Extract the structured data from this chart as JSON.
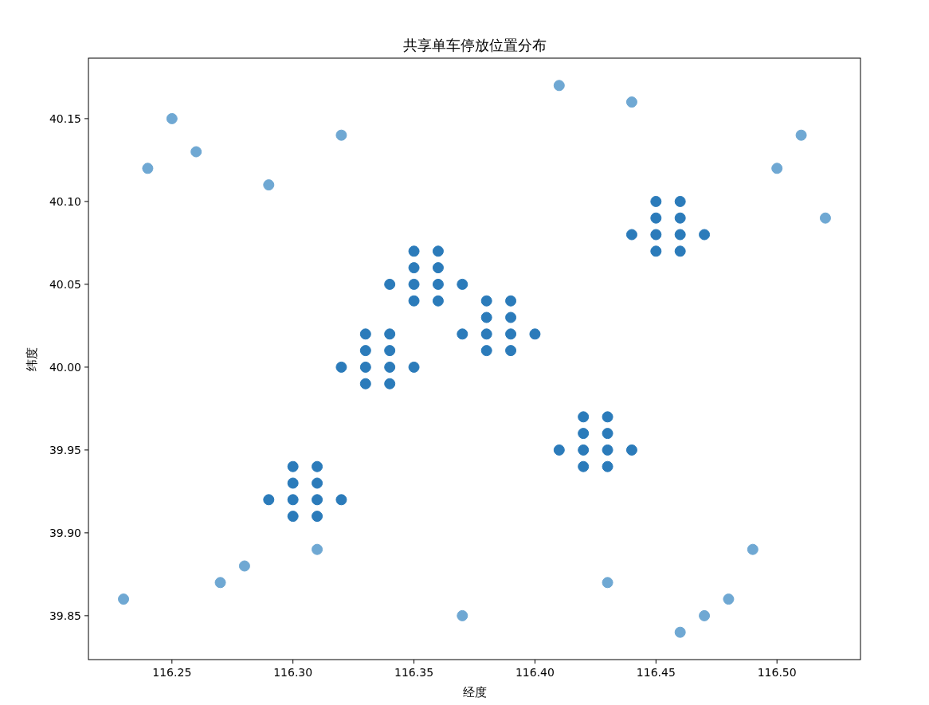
{
  "chart_data": {
    "type": "scatter",
    "title": "共享单车停放位置分布",
    "xlabel": "经度",
    "ylabel": "纬度",
    "xlim": [
      116.2155,
      116.5345
    ],
    "ylim": [
      39.8235,
      40.1865
    ],
    "xticks": [
      {
        "value": 116.25,
        "label": "116.25"
      },
      {
        "value": 116.3,
        "label": "116.30"
      },
      {
        "value": 116.35,
        "label": "116.35"
      },
      {
        "value": 116.4,
        "label": "116.40"
      },
      {
        "value": 116.45,
        "label": "116.45"
      },
      {
        "value": 116.5,
        "label": "116.50"
      }
    ],
    "yticks": [
      {
        "value": 39.85,
        "label": "39.85"
      },
      {
        "value": 39.9,
        "label": "39.90"
      },
      {
        "value": 39.95,
        "label": "39.95"
      },
      {
        "value": 40.0,
        "label": "40.00"
      },
      {
        "value": 40.05,
        "label": "40.05"
      },
      {
        "value": 40.1,
        "label": "40.10"
      },
      {
        "value": 40.15,
        "label": "40.15"
      }
    ],
    "marker": "circle",
    "grid": false,
    "series": [
      {
        "color": "#6fa8d3",
        "x": [
          116.23,
          116.24,
          116.25,
          116.26,
          116.29,
          116.32,
          116.27,
          116.28,
          116.31,
          116.37,
          116.41,
          116.44,
          116.43,
          116.46,
          116.47,
          116.48,
          116.49,
          116.5,
          116.51,
          116.52
        ],
        "values": [
          39.86,
          40.12,
          40.15,
          40.13,
          40.11,
          40.14,
          39.87,
          39.88,
          39.89,
          39.85,
          40.17,
          40.16,
          39.87,
          39.84,
          39.85,
          39.86,
          39.89,
          40.12,
          40.14,
          40.09
        ]
      },
      {
        "color": "#2b7bba",
        "x": [
          116.29,
          116.3,
          116.3,
          116.3,
          116.3,
          116.31,
          116.31,
          116.31,
          116.31,
          116.32,
          116.32,
          116.33,
          116.33,
          116.33,
          116.33,
          116.34,
          116.34,
          116.34,
          116.34,
          116.35,
          116.34,
          116.35,
          116.35,
          116.35,
          116.35,
          116.36,
          116.36,
          116.36,
          116.36,
          116.37,
          116.37,
          116.38,
          116.38,
          116.38,
          116.38,
          116.39,
          116.39,
          116.39,
          116.39,
          116.4,
          116.41,
          116.42,
          116.42,
          116.42,
          116.42,
          116.43,
          116.43,
          116.43,
          116.43,
          116.44,
          116.44,
          116.45,
          116.45,
          116.45,
          116.45,
          116.46,
          116.46,
          116.46,
          116.46,
          116.47
        ],
        "values": [
          39.92,
          39.94,
          39.93,
          39.92,
          39.91,
          39.94,
          39.93,
          39.92,
          39.91,
          39.92,
          40.0,
          40.02,
          40.01,
          40.0,
          39.99,
          40.02,
          40.01,
          40.0,
          39.99,
          40.0,
          40.05,
          40.07,
          40.06,
          40.05,
          40.04,
          40.07,
          40.06,
          40.05,
          40.04,
          40.05,
          40.02,
          40.04,
          40.03,
          40.02,
          40.01,
          40.04,
          40.03,
          40.02,
          40.01,
          40.02,
          39.95,
          39.97,
          39.96,
          39.95,
          39.94,
          39.97,
          39.96,
          39.95,
          39.94,
          39.95,
          40.08,
          40.1,
          40.09,
          40.08,
          40.07,
          40.1,
          40.09,
          40.08,
          40.07,
          40.08
        ]
      }
    ]
  }
}
